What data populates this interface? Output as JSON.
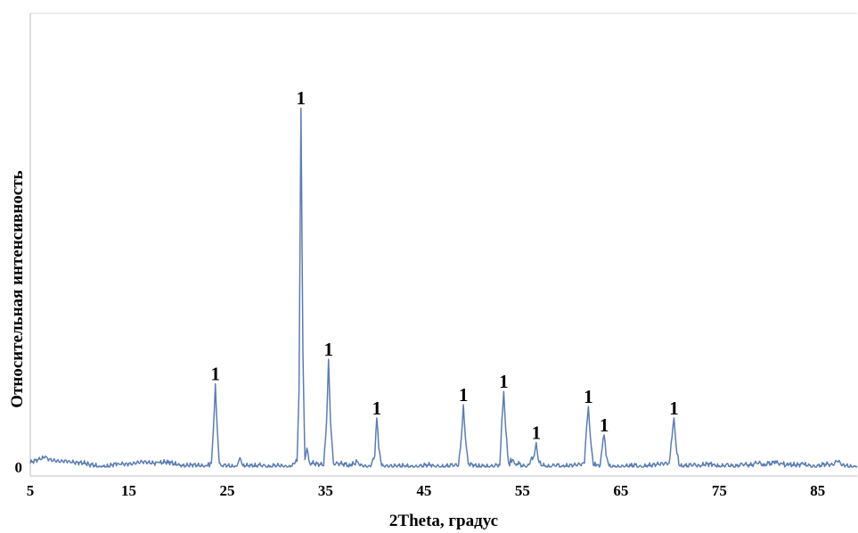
{
  "chart_data": {
    "type": "line",
    "title": "",
    "xlabel": "2Theta, градус",
    "ylabel": "Относительная интенсивность",
    "xlim": [
      5,
      89
    ],
    "ylim": [
      0,
      100
    ],
    "x_ticks": [
      "5",
      "15",
      "25",
      "35",
      "45",
      "55",
      "65",
      "75",
      "85"
    ],
    "y_ticks": [
      "0"
    ],
    "grid": false,
    "legend": "none",
    "line_color": "#5b7db3",
    "series": [
      {
        "values": [
          [
            5.0,
            1.0
          ],
          [
            6.0,
            2.0
          ],
          [
            6.5,
            2.8
          ],
          [
            7.0,
            2.2
          ],
          [
            8.0,
            1.2
          ],
          [
            9.0,
            1.6
          ],
          [
            10.0,
            1.3
          ],
          [
            11.0,
            0.5
          ],
          [
            12.0,
            0.3
          ],
          [
            13.0,
            0.2
          ],
          [
            14.0,
            0.8
          ],
          [
            15.0,
            1.0
          ],
          [
            16.0,
            1.1
          ],
          [
            17.0,
            1.2
          ],
          [
            18.0,
            1.3
          ],
          [
            19.0,
            1.1
          ],
          [
            20.0,
            0.6
          ],
          [
            21.0,
            0.5
          ],
          [
            22.0,
            0.3
          ],
          [
            23.0,
            0.3
          ],
          [
            23.4,
            1.0
          ],
          [
            23.6,
            10.0
          ],
          [
            23.8,
            22.0
          ],
          [
            24.0,
            10.0
          ],
          [
            24.2,
            1.0
          ],
          [
            24.5,
            0.3
          ],
          [
            26.0,
            0.3
          ],
          [
            26.3,
            2.5
          ],
          [
            26.6,
            0.3
          ],
          [
            28.0,
            0.3
          ],
          [
            30.0,
            0.2
          ],
          [
            31.5,
            0.3
          ],
          [
            32.1,
            1.5
          ],
          [
            32.3,
            20.0
          ],
          [
            32.5,
            95.0
          ],
          [
            32.7,
            30.0
          ],
          [
            32.9,
            2.0
          ],
          [
            33.1,
            5.0
          ],
          [
            33.4,
            1.0
          ],
          [
            34.8,
            0.3
          ],
          [
            35.1,
            12.0
          ],
          [
            35.3,
            28.5
          ],
          [
            35.5,
            12.0
          ],
          [
            35.8,
            1.0
          ],
          [
            37.5,
            0.3
          ],
          [
            38.2,
            1.5
          ],
          [
            38.5,
            0.3
          ],
          [
            39.5,
            0.3
          ],
          [
            40.0,
            3.0
          ],
          [
            40.2,
            13.0
          ],
          [
            40.4,
            5.0
          ],
          [
            40.7,
            0.3
          ],
          [
            43.0,
            0.3
          ],
          [
            46.0,
            0.3
          ],
          [
            48.5,
            0.3
          ],
          [
            48.8,
            8.0
          ],
          [
            49.0,
            16.5
          ],
          [
            49.2,
            8.0
          ],
          [
            49.5,
            0.8
          ],
          [
            51.0,
            0.3
          ],
          [
            52.7,
            0.5
          ],
          [
            52.9,
            12.0
          ],
          [
            53.1,
            20.0
          ],
          [
            53.3,
            10.0
          ],
          [
            53.6,
            1.0
          ],
          [
            54.0,
            2.0
          ],
          [
            54.3,
            0.8
          ],
          [
            55.5,
            0.3
          ],
          [
            56.2,
            3.0
          ],
          [
            56.4,
            6.5
          ],
          [
            56.6,
            2.0
          ],
          [
            57.0,
            0.3
          ],
          [
            59.0,
            0.3
          ],
          [
            61.3,
            1.0
          ],
          [
            61.5,
            10.0
          ],
          [
            61.7,
            16.0
          ],
          [
            61.9,
            8.0
          ],
          [
            62.2,
            0.5
          ],
          [
            62.9,
            0.5
          ],
          [
            63.1,
            5.0
          ],
          [
            63.3,
            8.5
          ],
          [
            63.5,
            3.0
          ],
          [
            63.8,
            0.3
          ],
          [
            66.0,
            0.3
          ],
          [
            68.0,
            0.2
          ],
          [
            69.9,
            1.0
          ],
          [
            70.2,
            8.0
          ],
          [
            70.4,
            13.0
          ],
          [
            70.6,
            6.0
          ],
          [
            70.9,
            0.5
          ],
          [
            73.0,
            0.3
          ],
          [
            74.5,
            0.8
          ],
          [
            75.0,
            0.3
          ],
          [
            77.0,
            0.4
          ],
          [
            79.0,
            1.0
          ],
          [
            79.5,
            0.3
          ],
          [
            80.7,
            1.6
          ],
          [
            81.2,
            1.0
          ],
          [
            82.0,
            0.4
          ],
          [
            83.5,
            1.0
          ],
          [
            84.0,
            0.3
          ],
          [
            86.5,
            0.6
          ],
          [
            87.0,
            1.5
          ],
          [
            87.5,
            0.4
          ],
          [
            89.0,
            0.2
          ]
        ]
      }
    ],
    "annotations": [
      {
        "text": "1",
        "x": 23.8,
        "y": 22.0
      },
      {
        "text": "1",
        "x": 32.5,
        "y": 95.0
      },
      {
        "text": "1",
        "x": 35.3,
        "y": 28.5
      },
      {
        "text": "1",
        "x": 40.2,
        "y": 13.0
      },
      {
        "text": "1",
        "x": 49.0,
        "y": 16.5
      },
      {
        "text": "1",
        "x": 53.1,
        "y": 20.0
      },
      {
        "text": "1",
        "x": 56.4,
        "y": 6.5
      },
      {
        "text": "1",
        "x": 61.7,
        "y": 16.0
      },
      {
        "text": "1",
        "x": 63.3,
        "y": 8.5
      },
      {
        "text": "1",
        "x": 70.4,
        "y": 13.0
      }
    ]
  }
}
